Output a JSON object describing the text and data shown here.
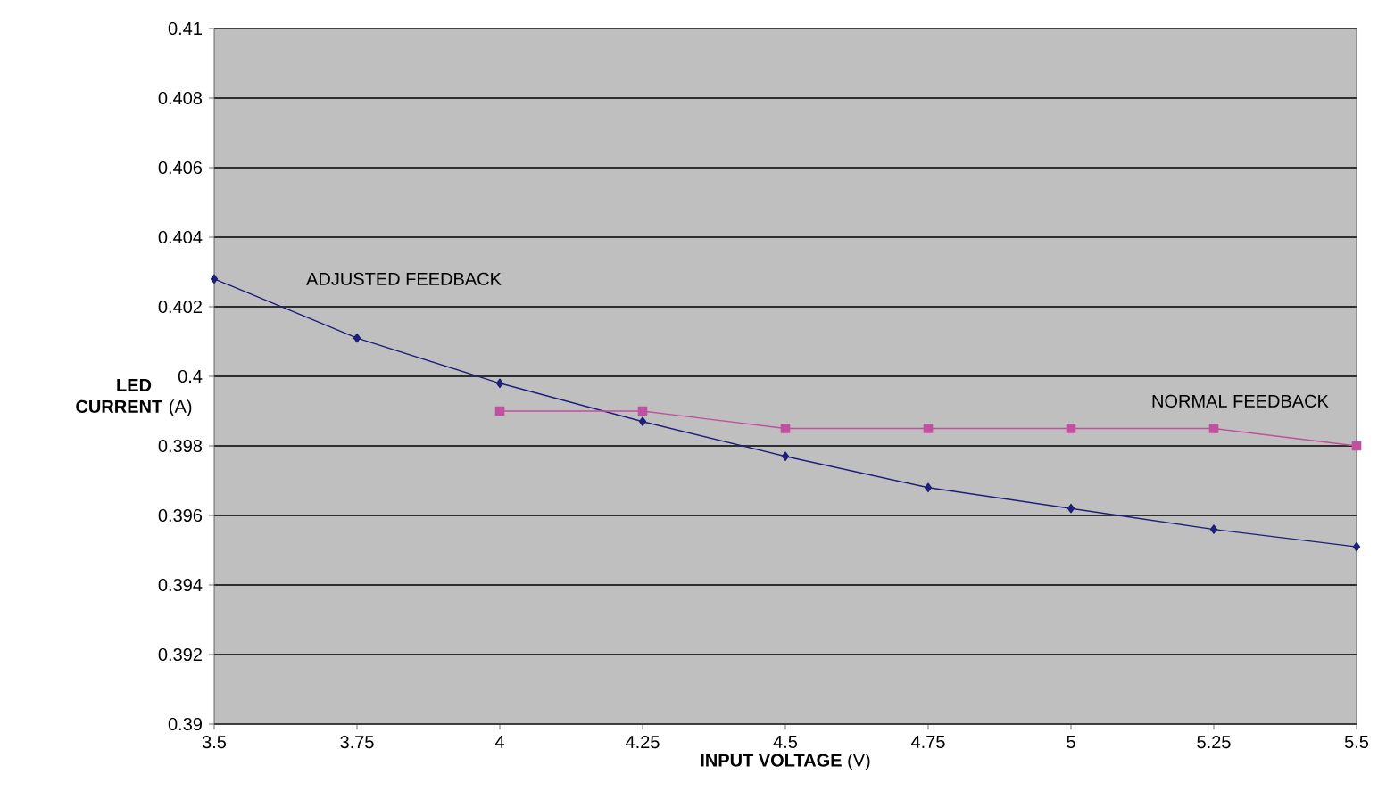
{
  "chart_data": {
    "type": "line",
    "xlabel": "**INPUT VOLTAGE** (V)",
    "ylabel": "**LED CURRENT** (A)",
    "x": [
      3.5,
      3.75,
      4,
      4.25,
      4.5,
      4.75,
      5,
      5.25,
      5.5
    ],
    "series": [
      {
        "name": "ADJUSTED FEEDBACK",
        "color": "#1f1f7a",
        "marker": "diamond",
        "values": [
          0.4028,
          0.4011,
          0.3998,
          0.3987,
          0.3977,
          0.3968,
          0.3962,
          0.3956,
          0.3951
        ]
      },
      {
        "name": "NORMAL FEEDBACK",
        "color": "#c050a0",
        "marker": "square",
        "values": [
          null,
          null,
          0.399,
          0.399,
          0.3985,
          0.3985,
          0.3985,
          0.3985,
          0.398
        ]
      }
    ],
    "xlim": [
      3.5,
      5.5
    ],
    "xticks": [
      3.5,
      3.75,
      4,
      4.25,
      4.5,
      4.75,
      5,
      5.25,
      5.5
    ],
    "ylim": [
      0.39,
      0.41
    ],
    "yticks": [
      0.39,
      0.392,
      0.394,
      0.396,
      0.398,
      0.4,
      0.402,
      0.404,
      0.406,
      0.408,
      0.41
    ],
    "grid": "y",
    "line_style": "solid"
  }
}
